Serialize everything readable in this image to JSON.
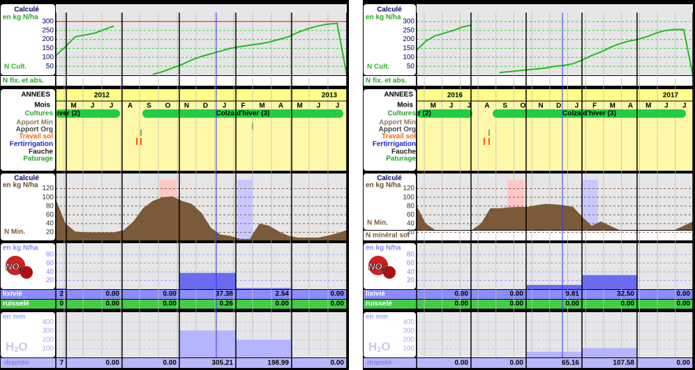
{
  "panels": [
    {
      "n_cult": {
        "title": "Calculé",
        "unit": "en kg N/ha",
        "label": "N Cult.",
        "footer": "N fix. et abs.",
        "ylim": [
          0,
          350
        ],
        "yticks": [
          300,
          250,
          200,
          150,
          100,
          50
        ],
        "limit_line_color": "#ff0000",
        "values": [
          110,
          160,
          215,
          225,
          235,
          255,
          275,
          null,
          null,
          null,
          5,
          20,
          40,
          60,
          85,
          105,
          120,
          135,
          150,
          160,
          168,
          175,
          185,
          200,
          215,
          240,
          260,
          275,
          285,
          290,
          0
        ]
      },
      "calendar": {
        "years_header": "ANNEES",
        "years": [
          "2012",
          "2013"
        ],
        "months_header": "Mois",
        "months": [
          "M",
          "J",
          "J",
          "A",
          "S",
          "O",
          "N",
          "D",
          "J",
          "F",
          "M",
          "A",
          "M",
          "J",
          "J"
        ],
        "rows": [
          "Cultures",
          "Apport Min",
          "Apport Org",
          "Travail sol",
          "Fertirrigation",
          "Fauche",
          "Paturage"
        ],
        "crops": [
          "iver (2)",
          "Colza d'hiver (3)"
        ]
      },
      "n_min": {
        "title": "Calculé",
        "unit": "en kg N/ha",
        "label": "N Min.",
        "ylim": [
          0,
          140
        ],
        "yticks": [
          120,
          100,
          80,
          60,
          40,
          20
        ],
        "values": [
          95,
          40,
          22,
          20,
          20,
          20,
          20,
          25,
          45,
          75,
          92,
          100,
          102,
          92,
          85,
          65,
          30,
          15,
          12,
          5,
          5,
          40,
          35,
          22,
          12,
          8,
          8,
          8,
          12,
          18,
          25
        ]
      },
      "no3": {
        "unit": "en kg N/ha",
        "label": [
          "NO",
          "3",
          "-"
        ],
        "ylim": [
          0,
          90
        ],
        "yticks": [
          80,
          60,
          40,
          20
        ],
        "lixivie_label": "lixivié",
        "lixivie": [
          "2",
          "0.00",
          "0.00",
          "37.38",
          "2.54",
          "0.00"
        ],
        "ruissele_label": "ruisselé",
        "ruissele": [
          "0",
          "0.00",
          "0.00",
          "0.26",
          "0.00",
          "0.00"
        ]
      },
      "h2o": {
        "unit": "en mm",
        "label": [
          "H",
          "2",
          "O"
        ],
        "ylim": [
          0,
          450
        ],
        "yticks": [
          400,
          300,
          200,
          100
        ],
        "drainee_label": "drainée",
        "drainee": [
          "7",
          "0.00",
          "0.00",
          "305.21",
          "198.99",
          "0.00"
        ]
      }
    },
    {
      "n_cult": {
        "title": "Calculé",
        "unit": "en kg N/ha",
        "label": "N Cult.",
        "footer": "N fix. et abs.",
        "ylim": [
          0,
          350
        ],
        "yticks": [
          300,
          250,
          200,
          150,
          100,
          50
        ],
        "values": [
          140,
          190,
          220,
          235,
          250,
          270,
          280,
          null,
          null,
          15,
          20,
          25,
          30,
          35,
          40,
          50,
          55,
          65,
          85,
          110,
          130,
          155,
          175,
          190,
          200,
          215,
          235,
          250,
          255,
          255,
          0
        ]
      },
      "calendar": {
        "years_header": "ANNEES",
        "years": [
          "2016",
          "2017"
        ],
        "months_header": "Mois",
        "months": [
          "M",
          "J",
          "J",
          "A",
          "S",
          "O",
          "N",
          "D",
          "J",
          "F",
          "M",
          "A",
          "M",
          "J",
          "J"
        ],
        "rows": [
          "Cultures",
          "Apport Min",
          "Apport Org",
          "Travail sol",
          "Fertirrigation",
          "Fauche",
          "Paturage"
        ],
        "crops": [
          "r (2)",
          "Colza d'hiver (3)"
        ]
      },
      "n_min": {
        "title": "Calculé",
        "unit": "en kg N/ha",
        "label": "N Min.",
        "footer": "N minéral sol",
        "ylim": [
          0,
          140
        ],
        "yticks": [
          120,
          100,
          80,
          60,
          40,
          20
        ],
        "values": [
          80,
          40,
          22,
          20,
          20,
          22,
          25,
          40,
          75,
          75,
          77,
          78,
          78,
          82,
          85,
          84,
          82,
          78,
          55,
          35,
          45,
          35,
          25,
          15,
          15,
          15,
          15,
          20,
          25,
          35,
          45
        ]
      },
      "no3": {
        "unit": "en kg N/ha",
        "label": [
          "NO",
          "3",
          "-"
        ],
        "ylim": [
          0,
          90
        ],
        "yticks": [
          80,
          60,
          40,
          20
        ],
        "lixivie_label": "lixivié",
        "lixivie": [
          "0.00",
          "0.00",
          "9.81",
          "32.50",
          "0.00"
        ],
        "ruissele_label": "ruisselé",
        "ruissele": [
          "0.00",
          "0.00",
          "0.00",
          "0.00",
          "0.00"
        ]
      },
      "h2o": {
        "unit": "en mm",
        "label": [
          "H",
          "2",
          "O"
        ],
        "ylim": [
          0,
          450
        ],
        "yticks": [
          400,
          300,
          200,
          100
        ],
        "drainee_label": "drainée",
        "drainee": [
          "0.00",
          "0.00",
          "65.16",
          "107.58",
          "0.00"
        ]
      }
    }
  ]
}
